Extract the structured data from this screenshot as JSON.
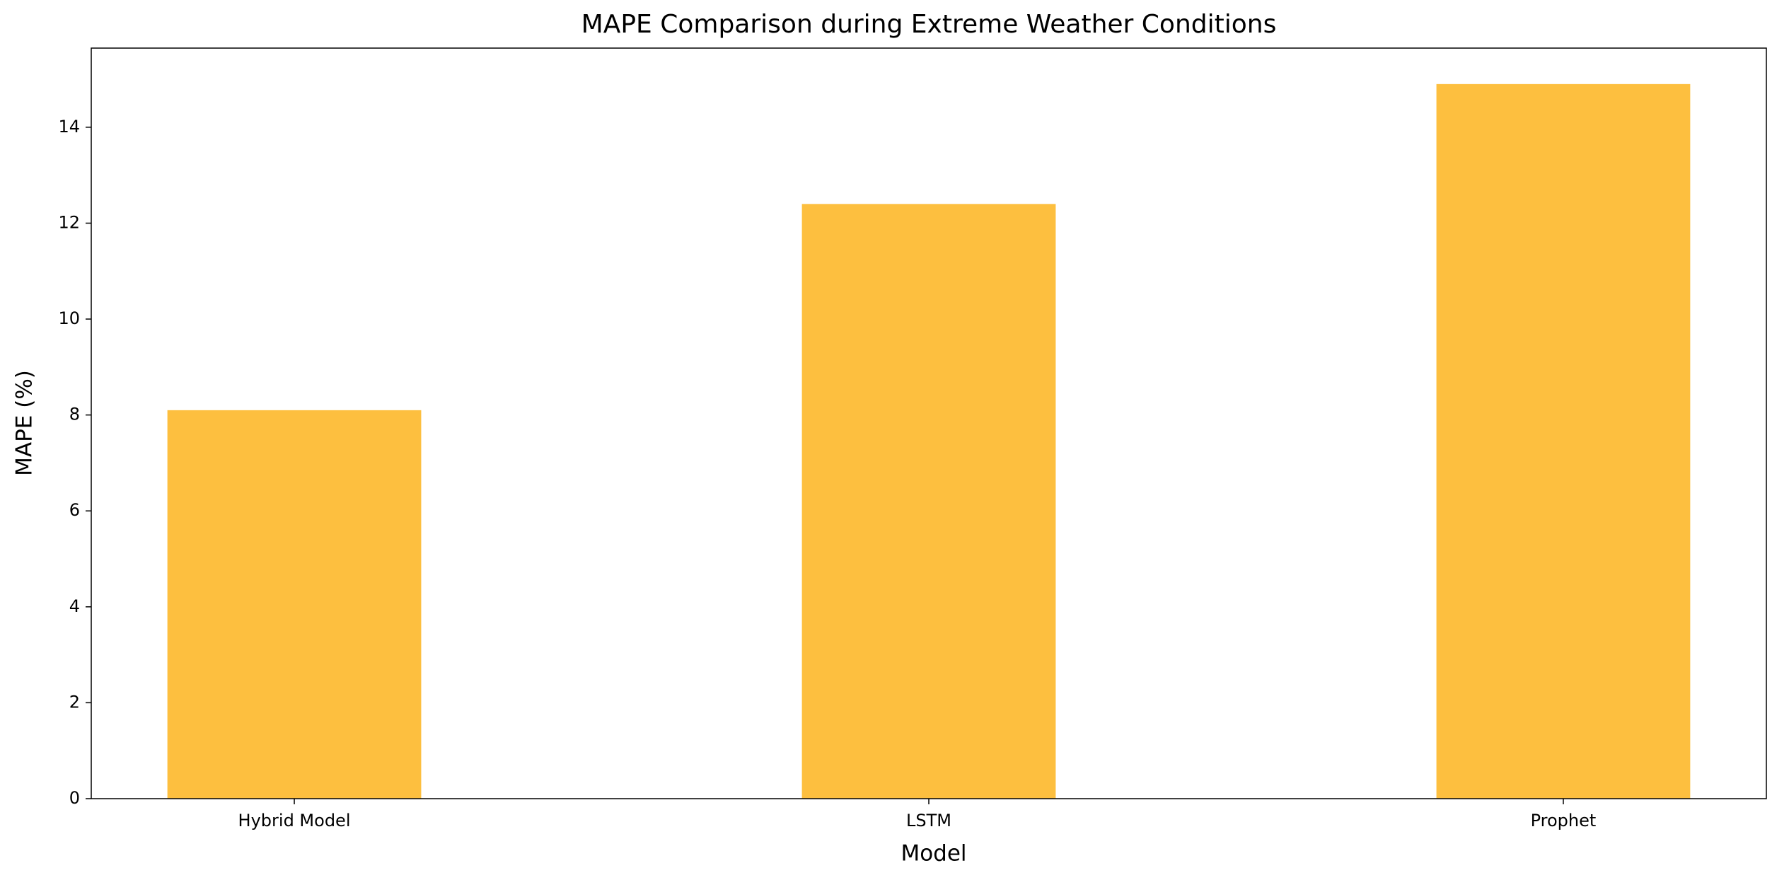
{
  "chart_data": {
    "type": "bar",
    "title": "MAPE Comparison during Extreme Weather Conditions",
    "x_label": "Model",
    "y_label": "MAPE (%)",
    "categories": [
      "Hybrid Model",
      "LSTM",
      "Prophet"
    ],
    "values": [
      8.1,
      12.4,
      14.9
    ],
    "color": "#fdbf3f",
    "ylim": [
      0,
      15.65
    ],
    "yticks": [
      0,
      2,
      4,
      6,
      8,
      10,
      12,
      14
    ],
    "grid": false
  }
}
